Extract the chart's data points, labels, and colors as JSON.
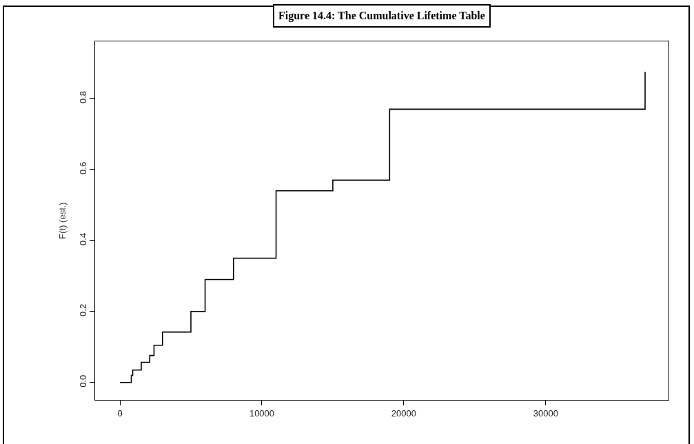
{
  "chart_data": {
    "type": "step",
    "title": "Figure 14.4: The Cumulative Lifetime Table",
    "ylabel": "F(t) (est.)",
    "x": [
      0,
      800,
      900,
      1500,
      2100,
      2400,
      3000,
      5000,
      6000,
      8000,
      11000,
      15000,
      19000,
      37000
    ],
    "values": [
      0,
      0.02,
      0.035,
      0.057,
      0.076,
      0.105,
      0.142,
      0.2,
      0.29,
      0.35,
      0.54,
      0.57,
      0.77,
      0.875
    ],
    "color": "#000000",
    "xlim": [
      -1750,
      38650
    ],
    "xticks": [
      0,
      10000,
      20000,
      30000
    ],
    "ylim": [
      -0.049,
      0.961
    ],
    "yticks": [
      {
        "value": 0,
        "label": "0.0"
      },
      {
        "value": 0.2,
        "label": "0.2"
      },
      {
        "value": 0.4,
        "label": "0.4"
      },
      {
        "value": 0.6,
        "label": "0.6"
      },
      {
        "value": 0.8,
        "label": "0.8"
      }
    ],
    "grid": false,
    "marker": "none",
    "line_style": "solid"
  }
}
